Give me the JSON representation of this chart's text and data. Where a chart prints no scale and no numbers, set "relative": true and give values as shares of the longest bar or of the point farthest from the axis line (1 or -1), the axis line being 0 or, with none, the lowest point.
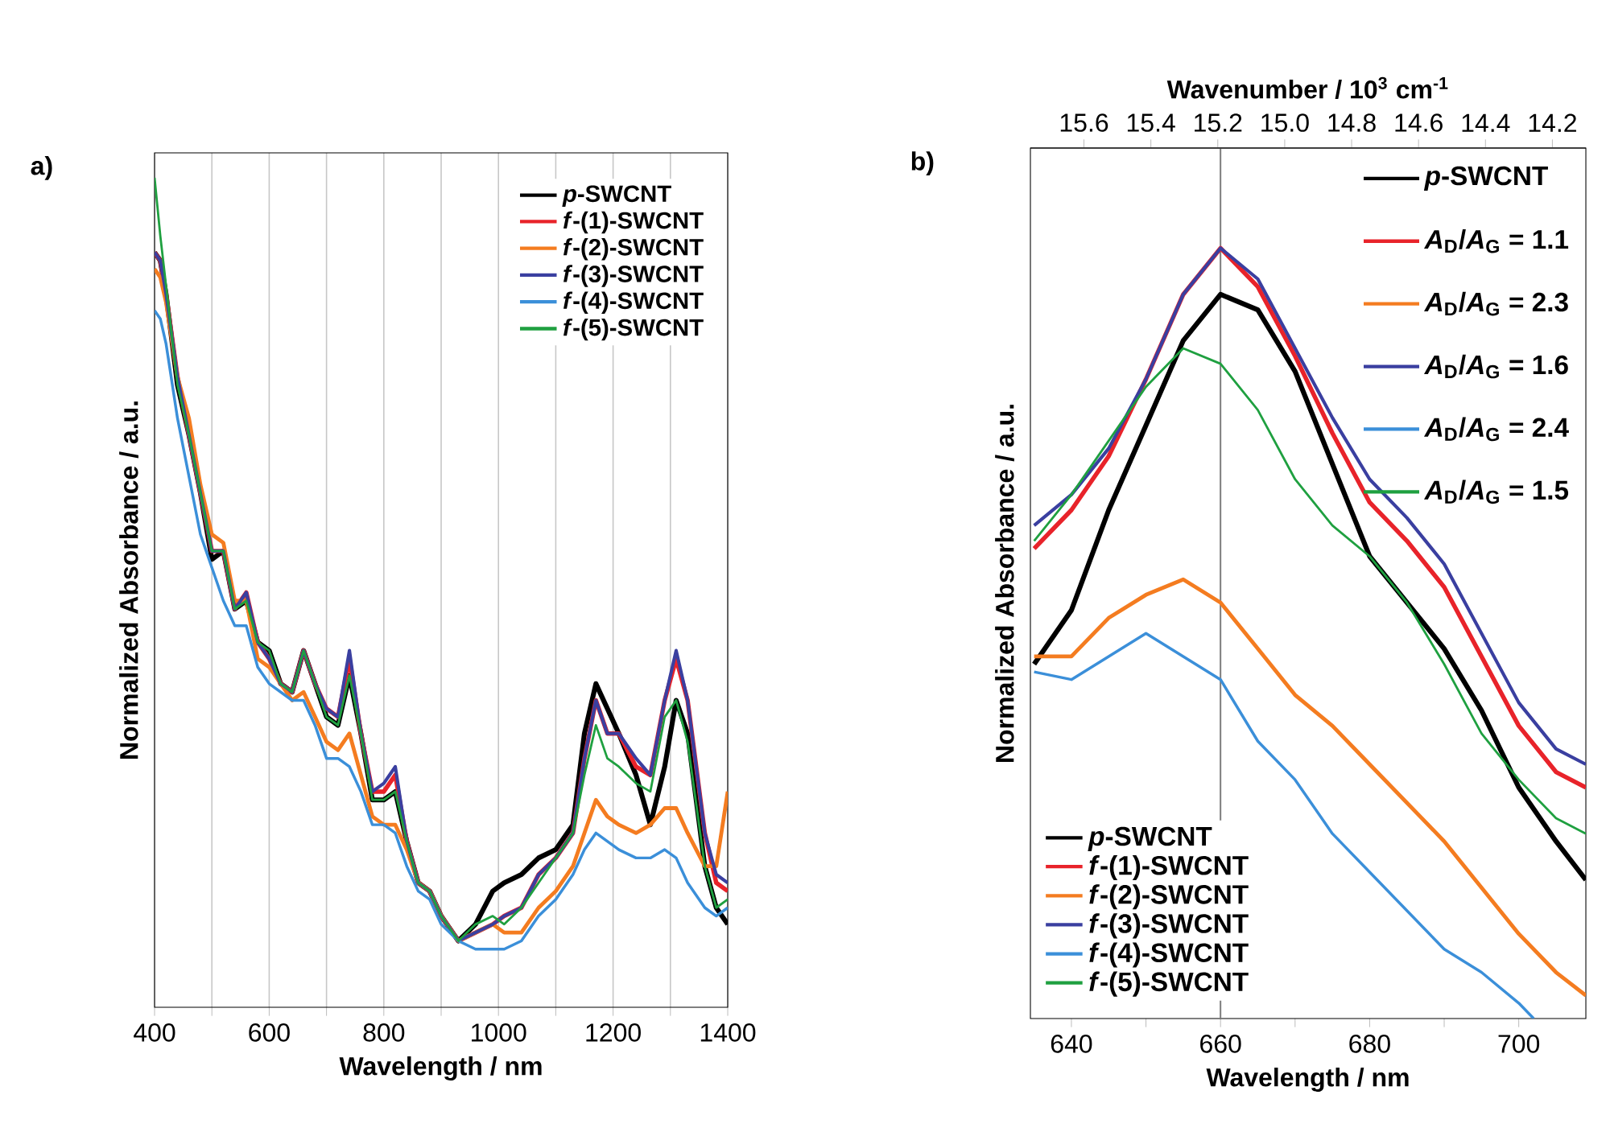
{
  "chart_data": [
    {
      "type": "line",
      "title": "a)",
      "xlabel": "Wavelength / nm",
      "ylabel": "Normalized Absorbance / a.u.",
      "relative": true,
      "grid": "x",
      "legend": "top right",
      "line_style": "solid",
      "xlim": [
        400,
        1400
      ],
      "xticks": [
        400,
        {
          "value": 500,
          "label": null
        },
        600,
        {
          "value": 700,
          "label": null
        },
        800,
        {
          "value": 900,
          "label": null
        },
        1000,
        {
          "value": 1100,
          "label": null
        },
        1200,
        {
          "value": 1300,
          "label": null
        },
        1400
      ],
      "x": [
        400,
        410,
        420,
        440,
        460,
        480,
        500,
        520,
        540,
        560,
        580,
        600,
        620,
        640,
        660,
        680,
        700,
        720,
        740,
        760,
        780,
        800,
        820,
        840,
        860,
        880,
        900,
        930,
        960,
        990,
        1010,
        1040,
        1070,
        1100,
        1130,
        1150,
        1170,
        1190,
        1210,
        1240,
        1265,
        1290,
        1310,
        1330,
        1360,
        1380,
        1400
      ],
      "series": [
        {
          "name": "*p*-SWCNT",
          "color": "#000000",
          "values": [
            0.91,
            0.9,
            0.86,
            0.75,
            0.69,
            0.62,
            0.54,
            0.55,
            0.48,
            0.49,
            0.44,
            0.43,
            0.39,
            0.38,
            0.43,
            0.39,
            0.35,
            0.34,
            0.4,
            0.33,
            0.25,
            0.25,
            0.26,
            0.2,
            0.15,
            0.14,
            0.11,
            0.08,
            0.1,
            0.14,
            0.15,
            0.16,
            0.18,
            0.19,
            0.22,
            0.33,
            0.39,
            0.36,
            0.33,
            0.28,
            0.22,
            0.29,
            0.37,
            0.33,
            0.17,
            0.12,
            0.1
          ]
        },
        {
          "name": "*f*-(1)-SWCNT",
          "color": "#e8232a",
          "values": [
            0.91,
            0.9,
            0.86,
            0.76,
            0.69,
            0.62,
            0.55,
            0.55,
            0.48,
            0.5,
            0.44,
            0.42,
            0.39,
            0.38,
            0.43,
            0.39,
            0.36,
            0.35,
            0.42,
            0.33,
            0.26,
            0.26,
            0.28,
            0.2,
            0.15,
            0.14,
            0.11,
            0.08,
            0.09,
            0.1,
            0.11,
            0.12,
            0.16,
            0.18,
            0.21,
            0.3,
            0.37,
            0.33,
            0.33,
            0.29,
            0.28,
            0.37,
            0.42,
            0.37,
            0.21,
            0.15,
            0.14
          ]
        },
        {
          "name": "*f*-(2)-SWCNT",
          "color": "#f47c20",
          "values": [
            0.89,
            0.88,
            0.85,
            0.76,
            0.71,
            0.63,
            0.57,
            0.56,
            0.49,
            0.49,
            0.42,
            0.41,
            0.39,
            0.37,
            0.38,
            0.35,
            0.32,
            0.31,
            0.33,
            0.28,
            0.23,
            0.22,
            0.22,
            0.19,
            0.15,
            0.14,
            0.11,
            0.08,
            0.09,
            0.1,
            0.09,
            0.09,
            0.12,
            0.14,
            0.17,
            0.21,
            0.25,
            0.23,
            0.22,
            0.21,
            0.22,
            0.24,
            0.24,
            0.21,
            0.17,
            0.17,
            0.26
          ]
        },
        {
          "name": "*f*-(3)-SWCNT",
          "color": "#3a3fa0",
          "values": [
            0.91,
            0.9,
            0.86,
            0.76,
            0.69,
            0.62,
            0.55,
            0.55,
            0.48,
            0.5,
            0.44,
            0.42,
            0.39,
            0.38,
            0.43,
            0.39,
            0.36,
            0.35,
            0.43,
            0.33,
            0.26,
            0.27,
            0.29,
            0.2,
            0.15,
            0.14,
            0.11,
            0.08,
            0.09,
            0.1,
            0.11,
            0.12,
            0.16,
            0.18,
            0.21,
            0.3,
            0.37,
            0.33,
            0.33,
            0.3,
            0.28,
            0.37,
            0.43,
            0.37,
            0.21,
            0.16,
            0.15
          ]
        },
        {
          "name": "*f*-(4)-SWCNT",
          "color": "#3b8fd9",
          "values": [
            0.84,
            0.83,
            0.8,
            0.71,
            0.64,
            0.57,
            0.53,
            0.49,
            0.46,
            0.46,
            0.41,
            0.39,
            0.38,
            0.37,
            0.37,
            0.34,
            0.3,
            0.3,
            0.29,
            0.26,
            0.22,
            0.22,
            0.21,
            0.17,
            0.14,
            0.13,
            0.1,
            0.08,
            0.07,
            0.07,
            0.07,
            0.08,
            0.11,
            0.13,
            0.16,
            0.19,
            0.21,
            0.2,
            0.19,
            0.18,
            0.18,
            0.19,
            0.18,
            0.15,
            0.12,
            0.11,
            0.12
          ]
        },
        {
          "name": "*f*-(5)-SWCNT",
          "color": "#1fa040",
          "values": [
            1.0,
            0.93,
            0.87,
            0.75,
            0.69,
            0.62,
            0.55,
            0.55,
            0.48,
            0.49,
            0.44,
            0.43,
            0.39,
            0.38,
            0.43,
            0.39,
            0.35,
            0.34,
            0.4,
            0.33,
            0.25,
            0.25,
            0.26,
            0.2,
            0.15,
            0.14,
            0.11,
            0.08,
            0.1,
            0.11,
            0.1,
            0.12,
            0.15,
            0.18,
            0.21,
            0.28,
            0.34,
            0.3,
            0.29,
            0.27,
            0.26,
            0.35,
            0.37,
            0.32,
            0.17,
            0.12,
            0.13
          ]
        }
      ]
    },
    {
      "type": "line",
      "title": "b)",
      "xlabel": "Wavelength / nm",
      "ylabel": "Normalized Absorbance / a.u.",
      "x2label": "Wavenumber / 10$^{3}$ cm$^{-1}$",
      "relative": true,
      "legend": "bottom left",
      "line_style": "solid",
      "xlim": [
        634.5,
        709
      ],
      "xticks": [
        640,
        {
          "value": 650,
          "label": null
        },
        660,
        {
          "value": 670,
          "label": null
        },
        680,
        {
          "value": 690,
          "label": null
        },
        700
      ],
      "x2lim": [
        15.76,
        14.1
      ],
      "x2ticks": [
        15.6,
        15.4,
        15.2,
        {
          "value": 15.0,
          "label": "15.0"
        },
        14.8,
        14.6,
        14.4,
        14.2
      ],
      "ref_lines": [
        {
          "axis": "x",
          "value": 660,
          "color": "#808080"
        }
      ],
      "annotations": [
        "*p*-SWCNT",
        "*A*$_{D}$/*A*$_{G}$ = 1.1",
        "*A*$_{D}$/*A*$_{G}$ = 2.3",
        "*A*$_{D}$/*A*$_{G}$ = 1.6",
        "*A*$_{D}$/*A*$_{G}$ = 2.4",
        "*A*$_{D}$/*A*$_{G}$ = 1.5"
      ],
      "x": [
        635,
        640,
        645,
        650,
        655,
        660,
        665,
        670,
        675,
        680,
        685,
        690,
        695,
        700,
        705,
        709
      ],
      "series": [
        {
          "name": "*p*-SWCNT",
          "color": "#000000",
          "values": [
            0.46,
            0.53,
            0.66,
            0.77,
            0.88,
            0.94,
            0.92,
            0.84,
            0.72,
            0.6,
            0.54,
            0.48,
            0.4,
            0.3,
            0.23,
            0.18
          ]
        },
        {
          "name": "*f*-(1)-SWCNT",
          "color": "#e8232a",
          "values": [
            0.61,
            0.66,
            0.73,
            0.83,
            0.94,
            1.0,
            0.95,
            0.86,
            0.76,
            0.67,
            0.62,
            0.56,
            0.47,
            0.38,
            0.32,
            0.3
          ]
        },
        {
          "name": "*f*-(2)-SWCNT",
          "color": "#f47c20",
          "values": [
            0.47,
            0.47,
            0.52,
            0.55,
            0.57,
            0.54,
            0.48,
            0.42,
            0.38,
            0.33,
            0.28,
            0.23,
            0.17,
            0.11,
            0.06,
            0.03
          ]
        },
        {
          "name": "*f*-(3)-SWCNT",
          "color": "#3a3fa0",
          "values": [
            0.64,
            0.68,
            0.74,
            0.83,
            0.94,
            1.0,
            0.96,
            0.87,
            0.78,
            0.7,
            0.65,
            0.59,
            0.5,
            0.41,
            0.35,
            0.33
          ]
        },
        {
          "name": "*f*-(4)-SWCNT",
          "color": "#3b8fd9",
          "x": [
            635,
            640,
            645,
            650,
            655,
            660,
            665,
            670,
            675,
            680,
            685,
            690,
            695,
            700,
            702
          ],
          "values": [
            0.45,
            0.44,
            0.47,
            0.5,
            0.47,
            0.44,
            0.36,
            0.31,
            0.24,
            0.19,
            0.14,
            0.09,
            0.06,
            0.02,
            0.0
          ]
        },
        {
          "name": "*f*-(5)-SWCNT",
          "color": "#1fa040",
          "values": [
            0.62,
            0.68,
            0.75,
            0.82,
            0.87,
            0.85,
            0.79,
            0.7,
            0.64,
            0.6,
            0.54,
            0.46,
            0.37,
            0.31,
            0.26,
            0.24
          ]
        }
      ]
    }
  ]
}
